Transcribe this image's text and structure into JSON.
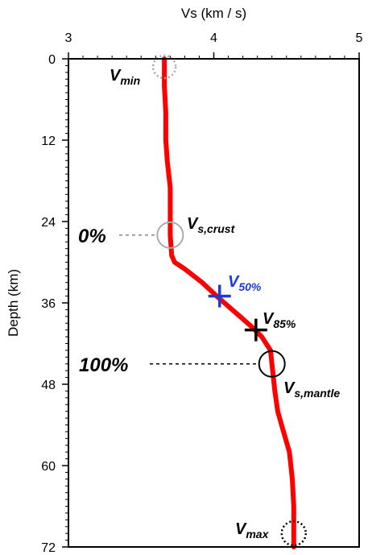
{
  "chart_data": {
    "type": "line",
    "xlabel": "Vs (km / s)",
    "ylabel": "Depth (km)",
    "xlim": [
      3,
      5
    ],
    "ylim": [
      72,
      0
    ],
    "x_axis_position": "top",
    "x_ticks": [
      3,
      4,
      5
    ],
    "y_ticks": [
      0,
      12,
      24,
      36,
      48,
      60,
      72
    ],
    "grid": false,
    "series": [
      {
        "color": "#ff0000",
        "points": [
          [
            3.66,
            0
          ],
          [
            3.66,
            4
          ],
          [
            3.67,
            8
          ],
          [
            3.67,
            12
          ],
          [
            3.68,
            15
          ],
          [
            3.69,
            17
          ],
          [
            3.7,
            19
          ],
          [
            3.7,
            22
          ],
          [
            3.7,
            26
          ],
          [
            3.71,
            29
          ],
          [
            3.73,
            30
          ],
          [
            3.8,
            31
          ],
          [
            3.92,
            33
          ],
          [
            4.02,
            35
          ],
          [
            4.1,
            36.5
          ],
          [
            4.18,
            38
          ],
          [
            4.26,
            39.5
          ],
          [
            4.33,
            41
          ],
          [
            4.39,
            43
          ],
          [
            4.4,
            45
          ],
          [
            4.41,
            47
          ],
          [
            4.42,
            49
          ],
          [
            4.44,
            52
          ],
          [
            4.48,
            55
          ],
          [
            4.52,
            58
          ],
          [
            4.54,
            62
          ],
          [
            4.55,
            66
          ],
          [
            4.55,
            72
          ]
        ]
      }
    ],
    "annotations": [
      {
        "label": "V",
        "subscript": "min",
        "x": 3.66,
        "y": 0,
        "marker": "dotted-circle",
        "marker_color": "#aaaaaa",
        "label_color": "#000000"
      },
      {
        "label": "V",
        "subscript": "s,crust",
        "x": 3.7,
        "y": 26,
        "marker": "circle",
        "marker_color": "#aaaaaa",
        "label_color": "#000000"
      },
      {
        "label": "V",
        "subscript": "50%",
        "x": 4.04,
        "y": 35,
        "marker": "plus",
        "marker_color": "#1a3bdc",
        "label_color": "#1a3bdc"
      },
      {
        "label": "V",
        "subscript": "85%",
        "x": 4.29,
        "y": 40,
        "marker": "plus",
        "marker_color": "#000000",
        "label_color": "#000000"
      },
      {
        "label": "V",
        "subscript": "s,mantle",
        "x": 4.4,
        "y": 45,
        "marker": "circle",
        "marker_color": "#000000",
        "label_color": "#000000"
      },
      {
        "label": "V",
        "subscript": "max",
        "x": 4.55,
        "y": 70,
        "marker": "dotted-circle",
        "marker_color": "#000000",
        "label_color": "#000000"
      }
    ],
    "percent_labels": [
      {
        "text": "0%",
        "y": 26,
        "line_color": "#888888",
        "line_to_x": 3.7
      },
      {
        "text": "100%",
        "y": 45,
        "line_color": "#000000",
        "line_to_x": 4.4
      }
    ]
  }
}
